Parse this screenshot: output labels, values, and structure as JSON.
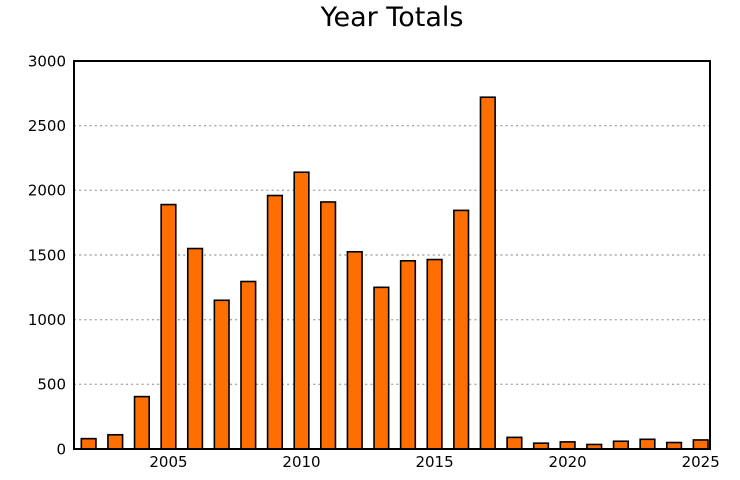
{
  "page": {
    "background_color": "#ffffff"
  },
  "chart_data": {
    "type": "bar",
    "title": "Year Totals",
    "xlabel": "",
    "ylabel": "",
    "x": [
      2002,
      2003,
      2004,
      2005,
      2006,
      2007,
      2008,
      2009,
      2010,
      2011,
      2012,
      2013,
      2014,
      2015,
      2016,
      2017,
      2018,
      2019,
      2020,
      2021,
      2022,
      2023,
      2024,
      2025
    ],
    "values": [
      80,
      110,
      405,
      1890,
      1550,
      1150,
      1295,
      1960,
      2140,
      1910,
      1525,
      1250,
      1455,
      1465,
      1845,
      2720,
      90,
      45,
      55,
      35,
      60,
      75,
      50,
      70
    ],
    "xlim": [
      2001.45,
      2025.35
    ],
    "ylim": [
      0,
      3000
    ],
    "yticks": [
      0,
      500,
      1000,
      1500,
      2000,
      2500,
      3000
    ],
    "xticks": [
      2005,
      2010,
      2015,
      2020,
      2025
    ],
    "bar_width_years": 0.55,
    "grid": "horizontal-dotted",
    "legend": "none",
    "colors": {
      "bar_fill": "#ff6e00",
      "bar_edge": "#000000",
      "grid_line": "#a6a6a6",
      "axis_border": "#000000",
      "text": "#000000"
    }
  }
}
